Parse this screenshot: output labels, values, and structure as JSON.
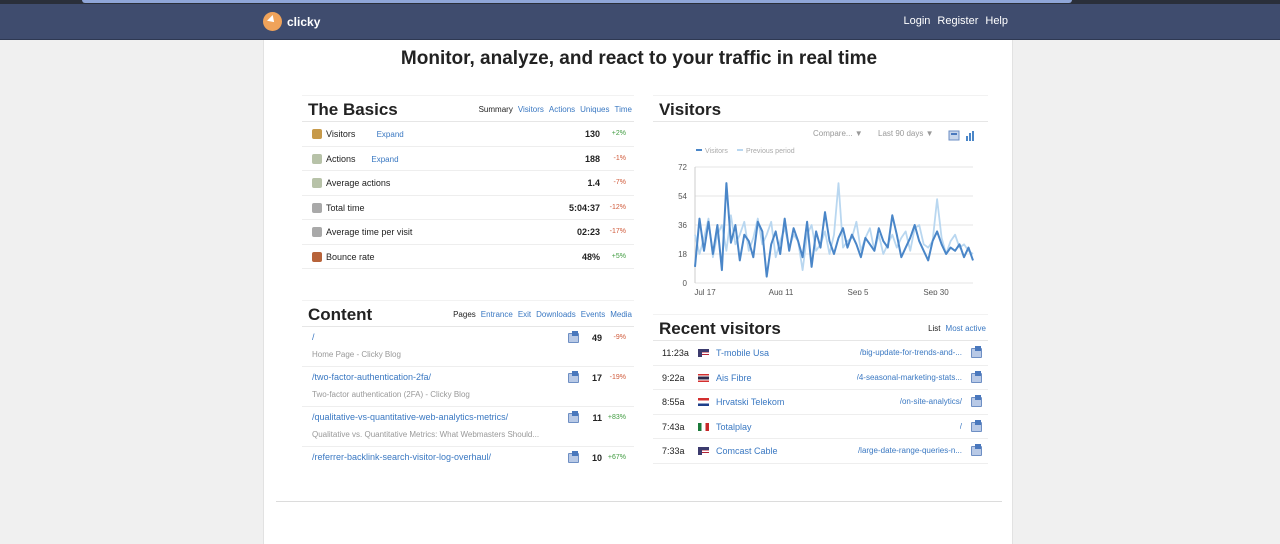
{
  "nav": {
    "brand": "clicky",
    "links": [
      "Login",
      "Register",
      "Help"
    ]
  },
  "hero": "Monitor, analyze, and react to your traffic in real time",
  "basics": {
    "title": "The Basics",
    "tabs": [
      "Summary",
      "Visitors",
      "Actions",
      "Uniques",
      "Time"
    ],
    "rows": [
      {
        "label": "Visitors",
        "expand": "Expand",
        "value": "130",
        "change": "+2%",
        "dir": "up",
        "icon": "visitors-icon",
        "color": "#c79a4a"
      },
      {
        "label": "Actions",
        "expand": "Expand",
        "value": "188",
        "change": "-1%",
        "dir": "down",
        "icon": "actions-icon",
        "color": "#b7c2a8"
      },
      {
        "label": "Average actions",
        "expand": "",
        "value": "1.4",
        "change": "-7%",
        "dir": "down",
        "icon": "actions-icon",
        "color": "#b7c2a8"
      },
      {
        "label": "Total time",
        "expand": "",
        "value": "5:04:37",
        "change": "-12%",
        "dir": "down",
        "icon": "clock-icon",
        "color": "#a9a9a9"
      },
      {
        "label": "Average time per visit",
        "expand": "",
        "value": "02:23",
        "change": "-17%",
        "dir": "down",
        "icon": "clock-icon",
        "color": "#a9a9a9"
      },
      {
        "label": "Bounce rate",
        "expand": "",
        "value": "48%",
        "change": "+5%",
        "dir": "up",
        "icon": "bounce-icon",
        "color": "#b7633a"
      }
    ]
  },
  "content": {
    "title": "Content",
    "tabs": [
      "Pages",
      "Entrance",
      "Exit",
      "Downloads",
      "Events",
      "Media"
    ],
    "rows": [
      {
        "path": "/",
        "title": "Home Page - Clicky Blog",
        "count": "49",
        "change": "-9%",
        "dir": "down"
      },
      {
        "path": "/two-factor-authentication-2fa/",
        "title": "Two-factor authentication (2FA) - Clicky Blog",
        "count": "17",
        "change": "-19%",
        "dir": "down"
      },
      {
        "path": "/qualitative-vs-quantitative-web-analytics-metrics/",
        "title": "Qualitative vs. Quantitative Metrics: What Webmasters Should...",
        "count": "11",
        "change": "+83%",
        "dir": "up"
      },
      {
        "path": "/referrer-backlink-search-visitor-log-overhaul/",
        "title": "",
        "count": "10",
        "change": "+67%",
        "dir": "up"
      }
    ]
  },
  "visitors_panel": {
    "title": "Visitors",
    "compare": "Compare... ▼",
    "range": "Last 90 days ▼"
  },
  "recent": {
    "title": "Recent visitors",
    "tabs": [
      "List",
      "Most active"
    ],
    "rows": [
      {
        "time": "11:23a",
        "isp": "T-mobile Usa",
        "path": "/big-update-for-trends-and-...",
        "flag": "us"
      },
      {
        "time": "9:22a",
        "isp": "Ais Fibre",
        "path": "/4-seasonal-marketing-stats...",
        "flag": "th"
      },
      {
        "time": "8:55a",
        "isp": "Hrvatski Telekom",
        "path": "/on-site-analytics/",
        "flag": "hr"
      },
      {
        "time": "7:43a",
        "isp": "Totalplay",
        "path": "/",
        "flag": "mx"
      },
      {
        "time": "7:33a",
        "isp": "Comcast Cable",
        "path": "/large-date-range-queries-n...",
        "flag": "us"
      }
    ]
  },
  "colors": {
    "nav": "#3f4c6e",
    "link": "#3a78c2",
    "series_current": "#4a86c8",
    "series_previous": "#b9d7f0"
  },
  "chart_data": {
    "type": "line",
    "title": "",
    "x_tick_labels": [
      "Jul 17",
      "Aug 11",
      "Sep 5",
      "Sep 30"
    ],
    "ylim": [
      0,
      72
    ],
    "y_ticks": [
      0,
      18,
      36,
      54,
      72
    ],
    "grid": true,
    "legend_position": "top-left",
    "series": [
      {
        "name": "Visitors",
        "values": [
          10,
          40,
          20,
          38,
          18,
          36,
          8,
          62,
          25,
          36,
          14,
          30,
          26,
          16,
          38,
          32,
          4,
          24,
          32,
          18,
          40,
          20,
          34,
          26,
          16,
          38,
          10,
          32,
          22,
          44,
          26,
          18,
          28,
          34,
          22,
          30,
          24,
          16,
          28,
          24,
          20,
          34,
          26,
          22,
          42,
          30,
          16,
          22,
          28,
          36,
          26,
          20,
          14,
          26,
          32,
          24,
          18,
          22,
          20,
          24,
          16,
          22,
          14
        ]
      },
      {
        "name": "Previous period",
        "values": [
          30,
          18,
          28,
          40,
          16,
          30,
          36,
          20,
          42,
          24,
          30,
          38,
          20,
          28,
          40,
          24,
          30,
          38,
          16,
          26,
          34,
          22,
          30,
          26,
          8,
          30,
          36,
          20,
          24,
          32,
          18,
          30,
          62,
          22,
          26,
          28,
          38,
          20,
          28,
          34,
          20,
          30,
          18,
          24,
          30,
          22,
          28,
          32,
          20,
          34,
          36,
          24,
          22,
          26,
          52,
          28,
          18,
          26,
          30,
          22,
          24,
          20,
          18
        ]
      }
    ]
  }
}
